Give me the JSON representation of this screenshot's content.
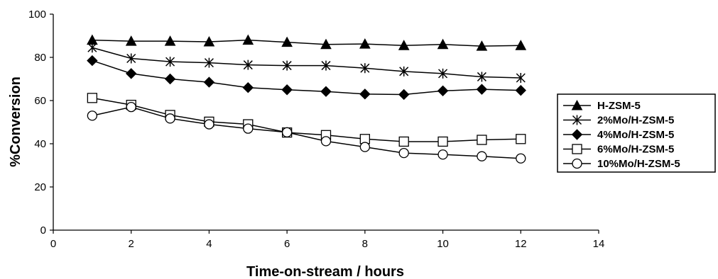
{
  "chart_data": {
    "type": "line",
    "title": "",
    "xlabel": "Time-on-stream / hours",
    "ylabel": "%Conversion",
    "xlim": [
      0,
      14
    ],
    "ylim": [
      0,
      100
    ],
    "xticks": [
      "0",
      "2",
      "4",
      "6",
      "8",
      "10",
      "12",
      "14"
    ],
    "yticks": [
      "0",
      "20",
      "40",
      "60",
      "80",
      "100"
    ],
    "grid": false,
    "legend_position": "right",
    "x": [
      1,
      2,
      3,
      4,
      5,
      6,
      7,
      8,
      9,
      10,
      11,
      12
    ],
    "series": [
      {
        "name": "H-ZSM-5",
        "marker": "filled-triangle",
        "values": [
          88,
          87.5,
          87.5,
          87.2,
          88,
          87,
          86,
          86.2,
          85.5,
          86,
          85.2,
          85.5
        ]
      },
      {
        "name": "2%Mo/H-ZSM-5",
        "marker": "asterisk",
        "values": [
          84.5,
          79.5,
          78,
          77.5,
          76.5,
          76.2,
          76.2,
          75,
          73.5,
          72.5,
          71,
          70.5
        ]
      },
      {
        "name": "4%Mo/H-ZSM-5",
        "marker": "filled-diamond",
        "values": [
          78.5,
          72.5,
          70,
          68.5,
          66,
          65,
          64.2,
          63,
          62.8,
          64.5,
          65.2,
          64.7
        ]
      },
      {
        "name": "6%Mo/H-ZSM-5",
        "marker": "open-square",
        "values": [
          61.2,
          58,
          53.3,
          50.2,
          49,
          45.2,
          44,
          42.2,
          41,
          41,
          41.8,
          42.2
        ]
      },
      {
        "name": "10%Mo/H-ZSM-5",
        "marker": "open-circle",
        "values": [
          53,
          57,
          51.7,
          49,
          47,
          45.3,
          41.2,
          38.5,
          35.7,
          35,
          34.2,
          33.2
        ]
      }
    ]
  }
}
